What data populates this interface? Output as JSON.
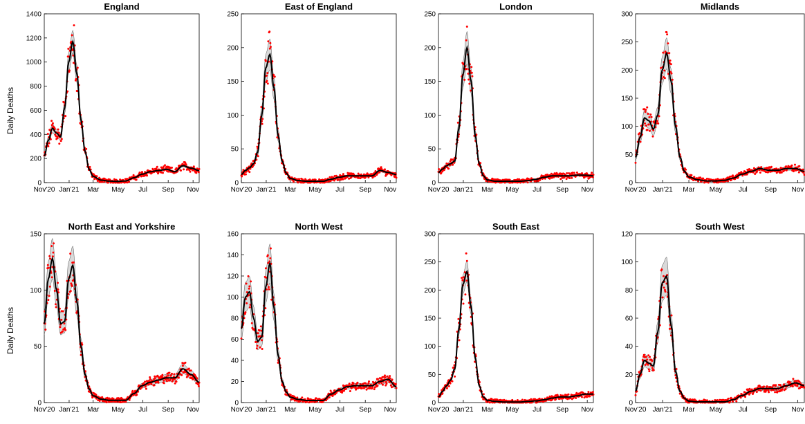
{
  "figure": {
    "ylabel": "Daily Deaths",
    "model_color": "#000000",
    "band_color": "#d9d9d9",
    "data_color": "#ff0000"
  },
  "chart_data": [
    {
      "type": "line",
      "title": "England",
      "xlabel": "",
      "ylabel": "Daily Deaths",
      "ylim": [
        0,
        1400
      ],
      "yticks": [
        0,
        200,
        400,
        600,
        800,
        1000,
        1200,
        1400
      ],
      "xlim": [
        0,
        380
      ],
      "xtick_labels": [
        "Nov'20",
        "Jan'21",
        "Mar",
        "May",
        "Jul",
        "Sep",
        "Nov"
      ],
      "xtick_days": [
        0,
        61,
        120,
        181,
        242,
        304,
        365
      ],
      "series": [
        {
          "x": [
            0,
            10,
            20,
            30,
            40,
            50,
            60,
            70,
            80,
            90,
            100,
            110,
            120,
            140,
            160,
            180,
            200,
            220,
            240,
            260,
            280,
            300,
            320,
            340,
            360,
            380
          ],
          "y": [
            220,
            350,
            450,
            410,
            380,
            620,
            1000,
            1170,
            900,
            520,
            260,
            110,
            50,
            20,
            12,
            10,
            14,
            40,
            70,
            90,
            100,
            110,
            90,
            140,
            120,
            100
          ]
        }
      ],
      "band_halfwidth": 0.08
    },
    {
      "type": "line",
      "title": "East of England",
      "xlabel": "",
      "ylabel": "",
      "ylim": [
        0,
        250
      ],
      "yticks": [
        0,
        50,
        100,
        150,
        200,
        250
      ],
      "xlim": [
        0,
        380
      ],
      "xtick_labels": [
        "Nov'20",
        "Jan'21",
        "Mar",
        "May",
        "Jul",
        "Sep",
        "Nov"
      ],
      "xtick_days": [
        0,
        61,
        120,
        181,
        242,
        304,
        365
      ],
      "series": [
        {
          "x": [
            0,
            10,
            20,
            30,
            40,
            50,
            60,
            70,
            80,
            90,
            100,
            110,
            120,
            140,
            160,
            180,
            200,
            220,
            240,
            260,
            280,
            300,
            320,
            340,
            360,
            380
          ],
          "y": [
            12,
            18,
            22,
            28,
            45,
            100,
            170,
            190,
            140,
            70,
            32,
            14,
            6,
            3,
            2,
            2,
            2,
            5,
            8,
            10,
            10,
            10,
            10,
            18,
            15,
            12
          ]
        }
      ],
      "band_halfwidth": 0.12
    },
    {
      "type": "line",
      "title": "London",
      "xlabel": "",
      "ylabel": "",
      "ylim": [
        0,
        250
      ],
      "yticks": [
        0,
        50,
        100,
        150,
        200,
        250
      ],
      "xlim": [
        0,
        380
      ],
      "xtick_labels": [
        "Nov'20",
        "Jan'21",
        "Mar",
        "May",
        "Jul",
        "Sep",
        "Nov"
      ],
      "xtick_days": [
        0,
        61,
        120,
        181,
        242,
        304,
        365
      ],
      "series": [
        {
          "x": [
            0,
            10,
            20,
            30,
            40,
            50,
            60,
            70,
            80,
            90,
            100,
            110,
            120,
            140,
            160,
            180,
            200,
            220,
            240,
            260,
            280,
            300,
            320,
            340,
            360,
            380
          ],
          "y": [
            15,
            20,
            25,
            28,
            32,
            80,
            160,
            200,
            150,
            70,
            28,
            10,
            4,
            2,
            2,
            2,
            2,
            3,
            5,
            8,
            10,
            10,
            10,
            11,
            11,
            10
          ]
        }
      ],
      "band_halfwidth": 0.12
    },
    {
      "type": "line",
      "title": "Midlands",
      "xlabel": "",
      "ylabel": "",
      "ylim": [
        0,
        300
      ],
      "yticks": [
        0,
        50,
        100,
        150,
        200,
        250,
        300
      ],
      "xlim": [
        0,
        380
      ],
      "xtick_labels": [
        "Nov'20",
        "Jan'21",
        "Mar",
        "May",
        "Jul",
        "Sep",
        "Nov"
      ],
      "xtick_days": [
        0,
        61,
        120,
        181,
        242,
        304,
        365
      ],
      "series": [
        {
          "x": [
            0,
            10,
            20,
            30,
            40,
            50,
            60,
            70,
            80,
            90,
            100,
            110,
            120,
            140,
            160,
            180,
            200,
            220,
            240,
            260,
            280,
            300,
            320,
            340,
            360,
            380
          ],
          "y": [
            45,
            80,
            115,
            110,
            95,
            120,
            200,
            230,
            180,
            100,
            45,
            20,
            10,
            5,
            3,
            3,
            4,
            8,
            15,
            20,
            25,
            22,
            22,
            25,
            25,
            20
          ]
        }
      ],
      "band_halfwidth": 0.12
    },
    {
      "type": "line",
      "title": "North East and Yorkshire",
      "xlabel": "",
      "ylabel": "Daily Deaths",
      "ylim": [
        0,
        150
      ],
      "yticks": [
        0,
        50,
        100,
        150
      ],
      "xlim": [
        0,
        380
      ],
      "xtick_labels": [
        "Nov'20",
        "Jan'21",
        "Mar",
        "May",
        "Jul",
        "Sep",
        "Nov"
      ],
      "xtick_days": [
        0,
        61,
        120,
        181,
        242,
        304,
        365
      ],
      "series": [
        {
          "x": [
            0,
            10,
            20,
            30,
            40,
            50,
            60,
            70,
            80,
            90,
            100,
            110,
            120,
            140,
            160,
            180,
            200,
            220,
            240,
            260,
            280,
            300,
            320,
            340,
            360,
            380
          ],
          "y": [
            70,
            110,
            128,
            100,
            70,
            72,
            110,
            122,
            90,
            50,
            25,
            12,
            6,
            3,
            2,
            2,
            2,
            8,
            15,
            18,
            20,
            22,
            22,
            30,
            25,
            18
          ]
        }
      ],
      "band_halfwidth": 0.14
    },
    {
      "type": "line",
      "title": "North West",
      "xlabel": "",
      "ylabel": "",
      "ylim": [
        0,
        160
      ],
      "yticks": [
        0,
        20,
        40,
        60,
        80,
        100,
        120,
        140,
        160
      ],
      "xlim": [
        0,
        380
      ],
      "xtick_labels": [
        "Nov'20",
        "Jan'21",
        "Mar",
        "May",
        "Jul",
        "Sep",
        "Nov"
      ],
      "xtick_days": [
        0,
        61,
        120,
        181,
        242,
        304,
        365
      ],
      "series": [
        {
          "x": [
            0,
            10,
            20,
            30,
            40,
            50,
            60,
            70,
            80,
            90,
            100,
            110,
            120,
            140,
            160,
            180,
            200,
            220,
            240,
            260,
            280,
            300,
            320,
            340,
            360,
            380
          ],
          "y": [
            70,
            100,
            105,
            80,
            58,
            62,
            110,
            132,
            90,
            45,
            20,
            10,
            5,
            3,
            2,
            2,
            2,
            8,
            12,
            15,
            16,
            16,
            16,
            20,
            22,
            15
          ]
        }
      ],
      "band_halfwidth": 0.14
    },
    {
      "type": "line",
      "title": "South East",
      "xlabel": "",
      "ylabel": "",
      "ylim": [
        0,
        300
      ],
      "yticks": [
        0,
        50,
        100,
        150,
        200,
        250,
        300
      ],
      "xlim": [
        0,
        380
      ],
      "xtick_labels": [
        "Nov'20",
        "Jan'21",
        "Mar",
        "May",
        "Jul",
        "Sep",
        "Nov"
      ],
      "xtick_days": [
        0,
        61,
        120,
        181,
        242,
        304,
        365
      ],
      "series": [
        {
          "x": [
            0,
            10,
            20,
            30,
            40,
            50,
            60,
            70,
            80,
            90,
            100,
            110,
            120,
            140,
            160,
            180,
            200,
            220,
            240,
            260,
            280,
            300,
            320,
            340,
            360,
            380
          ],
          "y": [
            10,
            20,
            30,
            40,
            60,
            130,
            210,
            233,
            170,
            80,
            30,
            10,
            4,
            2,
            1,
            1,
            1,
            2,
            3,
            5,
            8,
            10,
            10,
            12,
            15,
            15
          ]
        }
      ],
      "band_halfwidth": 0.08
    },
    {
      "type": "line",
      "title": "South West",
      "xlabel": "",
      "ylabel": "",
      "ylim": [
        0,
        120
      ],
      "yticks": [
        0,
        20,
        40,
        60,
        80,
        100,
        120
      ],
      "xlim": [
        0,
        380
      ],
      "xtick_labels": [
        "Nov'20",
        "Jan'21",
        "Mar",
        "May",
        "Jul",
        "Sep",
        "Nov"
      ],
      "xtick_days": [
        0,
        61,
        120,
        181,
        242,
        304,
        365
      ],
      "series": [
        {
          "x": [
            0,
            10,
            20,
            30,
            40,
            50,
            60,
            70,
            80,
            90,
            100,
            110,
            120,
            140,
            160,
            180,
            200,
            220,
            240,
            260,
            280,
            300,
            320,
            340,
            360,
            380
          ],
          "y": [
            8,
            20,
            30,
            28,
            26,
            50,
            85,
            90,
            55,
            22,
            8,
            3,
            1,
            0.5,
            0.5,
            0.5,
            0.5,
            2,
            5,
            8,
            10,
            10,
            10,
            12,
            14,
            12
          ]
        }
      ],
      "band_halfwidth": 0.15
    }
  ]
}
